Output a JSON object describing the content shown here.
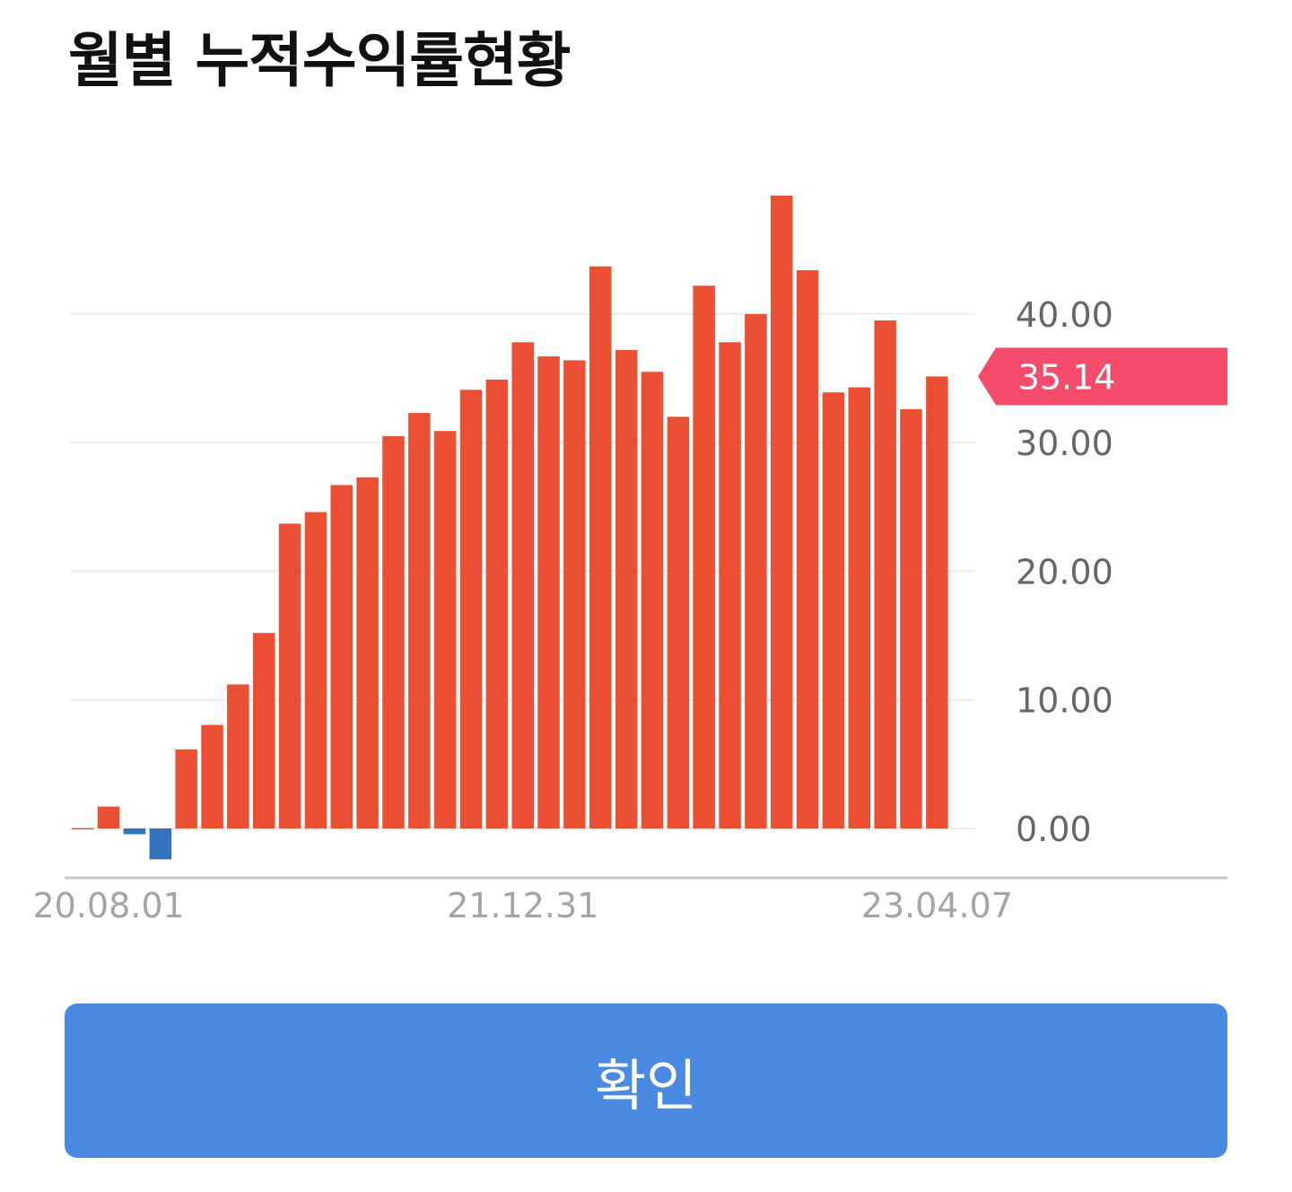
{
  "header": {
    "title": "월별 누적수익률현황"
  },
  "button": {
    "confirm_label": "확인"
  },
  "colors": {
    "positive_bar": "#eb5034",
    "negative_bar": "#3373bd",
    "current_marker": "#f64c6b",
    "gridline": "#ececec",
    "baseline": "#c8c8c8",
    "y_tick_text": "#666666",
    "x_tick_text": "#a4a4a4",
    "button_bg": "#4a8ae1"
  },
  "chart_data": {
    "type": "bar",
    "title": "월별 누적수익률현황",
    "xlabel": "",
    "ylabel": "",
    "values": [
      0.03,
      1.7,
      -0.45,
      -2.4,
      6.15,
      8.05,
      11.2,
      15.2,
      23.7,
      24.6,
      26.7,
      27.3,
      30.5,
      32.3,
      30.9,
      34.1,
      34.9,
      37.8,
      36.7,
      36.4,
      43.7,
      37.2,
      35.5,
      32.0,
      42.2,
      37.8,
      40.0,
      49.2,
      43.4,
      33.9,
      34.3,
      39.5,
      32.6,
      35.14
    ],
    "x_tick_labels": [
      "20.08.01",
      "21.12.31",
      "23.04.07"
    ],
    "y_ticks": [
      "0.00",
      "10.00",
      "20.00",
      "30.00",
      "40.00"
    ],
    "current_value_label": "35.14",
    "current_value": 35.14,
    "y_axis_side": "right",
    "grid": true,
    "legend": "none"
  }
}
